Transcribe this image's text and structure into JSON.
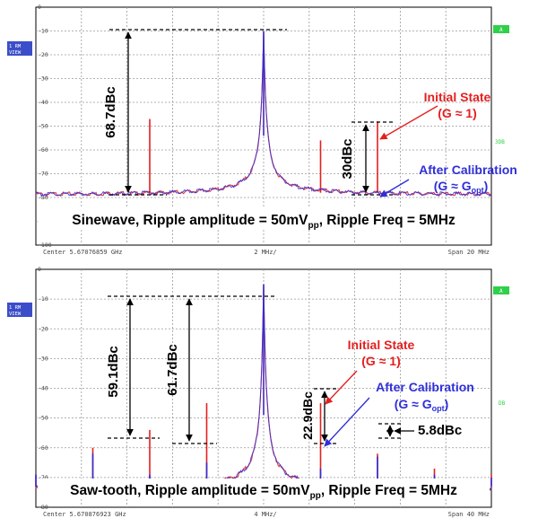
{
  "chart_data": [
    {
      "type": "line",
      "title": "Sinewave, Ripple amplitude = 50mV",
      "title_sub": "pp",
      "title_tail": ", Ripple Freq = 5MHz",
      "center_label": "Center 5.67076859 GHz",
      "div_label": "2 MHz/",
      "span_label": "Span 20 MHz",
      "ylim": [
        -100,
        0
      ],
      "yticks": [
        "0",
        "-10",
        "-20",
        "-30",
        "-40",
        "-50",
        "-60",
        "-70",
        "-80",
        "-90",
        "-100"
      ],
      "x_divisions": 10,
      "carrier_level": -10,
      "noise_floor": -79,
      "grid": true,
      "side_labels": {
        "left_a": "1 RM",
        "left_b": "VIEW",
        "right_top": "A",
        "right_mid": "3DB"
      },
      "series": [
        {
          "color": "#e41f1f",
          "spurs": [
            {
              "x": -5,
              "y": -47
            },
            {
              "x": 2.5,
              "y": -56
            },
            {
              "x": 5,
              "y": -48
            }
          ]
        },
        {
          "color": "#2f2fd8",
          "spurs": [
            {
              "x": 5,
              "y": -77.5
            }
          ]
        }
      ],
      "annotations": [
        {
          "text": "68.7dBc",
          "kind": "vertical-label"
        },
        {
          "text": "30dBc",
          "kind": "vertical-label"
        },
        {
          "text": "Initial State",
          "color": "#e41f1f"
        },
        {
          "text": "(G ≈ 1)",
          "color": "#e41f1f"
        },
        {
          "text": "After Calibration",
          "color": "#2f2fd8"
        },
        {
          "text": "(G ≈ G",
          "sub": "opt",
          "tail": ")",
          "color": "#2f2fd8"
        }
      ]
    },
    {
      "type": "line",
      "title": "Saw-tooth, Ripple amplitude = 50mV",
      "title_sub": "pp",
      "title_tail": ", Ripple Freq = 5MHz",
      "center_label": "Center 5.670876923 GHz",
      "div_label": "4 MHz/",
      "span_label": "Span 40 MHz",
      "ylim": [
        -80,
        0
      ],
      "yticks": [
        "0",
        "-10",
        "-20",
        "-30",
        "-40",
        "-50",
        "-60",
        "-70",
        "-80"
      ],
      "x_divisions": 10,
      "carrier_level": -5,
      "noise_floor": -74,
      "grid": true,
      "side_labels": {
        "left_a": "1 RM",
        "left_b": "VIEW",
        "right_top": "A",
        "right_mid": "DB"
      },
      "series": [
        {
          "color": "#e41f1f",
          "spurs": [
            {
              "x": -20,
              "y": -69
            },
            {
              "x": -15,
              "y": -60
            },
            {
              "x": -10,
              "y": -54
            },
            {
              "x": -5,
              "y": -45
            },
            {
              "x": 5,
              "y": -45
            },
            {
              "x": 10,
              "y": -62
            },
            {
              "x": 15,
              "y": -67
            },
            {
              "x": 20,
              "y": -69
            }
          ]
        },
        {
          "color": "#2f2fd8",
          "spurs": [
            {
              "x": -20,
              "y": -69
            },
            {
              "x": -15,
              "y": -62
            },
            {
              "x": -10,
              "y": -69
            },
            {
              "x": -5,
              "y": -65
            },
            {
              "x": 5,
              "y": -67
            },
            {
              "x": 10,
              "y": -63
            },
            {
              "x": 15,
              "y": -69
            },
            {
              "x": 20,
              "y": -70
            }
          ]
        }
      ],
      "annotations": [
        {
          "text": "59.1dBc",
          "kind": "vertical-label"
        },
        {
          "text": "61.7dBc",
          "kind": "vertical-label"
        },
        {
          "text": "22.9dBc",
          "kind": "vertical-label"
        },
        {
          "text": "5.8dBc"
        },
        {
          "text": "Initial State",
          "color": "#e41f1f"
        },
        {
          "text": "(G ≈ 1)",
          "color": "#e41f1f"
        },
        {
          "text": "After Calibration",
          "color": "#2f2fd8"
        },
        {
          "text": "(G ≈ G",
          "sub": "opt",
          "tail": ")",
          "color": "#2f2fd8"
        }
      ]
    }
  ]
}
